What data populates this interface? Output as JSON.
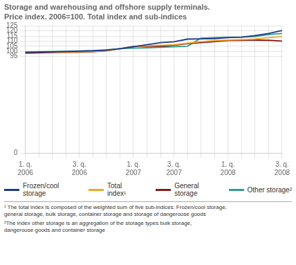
{
  "chart_data": {
    "type": "line",
    "title": "Storage and warehousing and offshore supply terminals.",
    "subtitle": "Price index. 2006=100. Total index and sub-indices",
    "categories": [
      "1. q.\n2006",
      null,
      null,
      null,
      "3. q.\n2006",
      null,
      null,
      null,
      "1. q.\n2007",
      null,
      null,
      "3. q.\n2007",
      null,
      null,
      null,
      "1. q.\n2008",
      null,
      null,
      null,
      "3. q.\n2008"
    ],
    "series": [
      {
        "name": "Frozen/cool\nstorage",
        "color": "#1a3a8c",
        "values": [
          99.0,
          99.3,
          99.5,
          99.8,
          100.1,
          100.5,
          101.0,
          102.5,
          104.5,
          106.5,
          108.5,
          109.3,
          112.0,
          112.2,
          112.5,
          113.5,
          114.0,
          115.5,
          117.5,
          120.5
        ]
      },
      {
        "name": "Total\nindex¹",
        "color": "#f5a623",
        "values": [
          99.2,
          99.3,
          99.4,
          99.5,
          99.6,
          99.8,
          100.5,
          102.5,
          104.5,
          105.5,
          106.0,
          106.5,
          108.0,
          109.5,
          110.5,
          111.0,
          111.5,
          112.0,
          113.5,
          114.5
        ]
      },
      {
        "name": "General\nstorage",
        "color": "#8b1a1a",
        "values": [
          98.2,
          98.5,
          98.8,
          99.0,
          99.2,
          99.5,
          100.5,
          102.5,
          104.8,
          105.0,
          105.0,
          106.0,
          107.5,
          108.5,
          109.5,
          110.5,
          110.8,
          111.0,
          110.8,
          110.0
        ]
      },
      {
        "name": "Other storage²",
        "color": "#2e9e8f",
        "values": [
          99.5,
          99.7,
          99.8,
          100.0,
          100.3,
          100.7,
          101.5,
          102.5,
          103.0,
          103.5,
          104.0,
          104.5,
          105.0,
          113.0,
          113.5,
          113.8,
          114.0,
          114.5,
          116.5,
          117.5
        ]
      }
    ],
    "ylim": [
      0,
      125
    ],
    "yticks": [
      0,
      95,
      100,
      105,
      110,
      115,
      120,
      125
    ],
    "grid": true,
    "annotations": [
      "¹ The total index is composed of the weighted sum of five sub-indices: Frozen/cool storage,\ngeneral storage, bulk storage, container storage and storage of dangerouse goods",
      "²The index other storage is an aggregation of the storage types bulk storage,\ndangerouse goods and container storage"
    ]
  }
}
